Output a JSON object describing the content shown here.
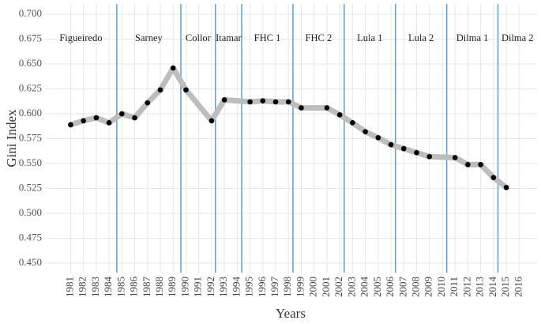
{
  "chart_data": {
    "type": "line",
    "x_label": "Years",
    "y_label": "Gini Index",
    "x": [
      1981,
      1982,
      1983,
      1984,
      1985,
      1986,
      1987,
      1988,
      1989,
      1990,
      1992,
      1993,
      1995,
      1996,
      1997,
      1998,
      1999,
      2001,
      2002,
      2003,
      2004,
      2005,
      2006,
      2007,
      2008,
      2009,
      2011,
      2012,
      2013,
      2014,
      2015
    ],
    "series": [
      {
        "name": "Gini Index",
        "color": "#bdbdbd",
        "marker_color": "#000000",
        "values": [
          0.589,
          0.593,
          0.596,
          0.591,
          0.6,
          0.596,
          0.611,
          0.624,
          0.646,
          0.624,
          0.593,
          0.614,
          0.612,
          0.613,
          0.612,
          0.612,
          0.606,
          0.606,
          0.599,
          0.591,
          0.582,
          0.576,
          0.569,
          0.565,
          0.561,
          0.557,
          0.556,
          0.549,
          0.549,
          0.536,
          0.526
        ]
      }
    ],
    "xlim": [
      1979,
      2017.4
    ],
    "xticks": [
      1981,
      1982,
      1983,
      1984,
      1985,
      1986,
      1987,
      1988,
      1989,
      1990,
      1991,
      1992,
      1993,
      1994,
      1995,
      1996,
      1997,
      1998,
      1999,
      2000,
      2001,
      2002,
      2003,
      2004,
      2005,
      2006,
      2007,
      2008,
      2009,
      2010,
      2011,
      2012,
      2013,
      2014,
      2015,
      2016
    ],
    "ylim": [
      0.4405,
      0.7103
    ],
    "yticks": [
      {
        "value": 0.45,
        "label": "0.450"
      },
      {
        "value": 0.475,
        "label": "0.475"
      },
      {
        "value": 0.5,
        "label": "0.500"
      },
      {
        "value": 0.525,
        "label": "0.525"
      },
      {
        "value": 0.55,
        "label": "0.550"
      },
      {
        "value": 0.575,
        "label": "0.575"
      },
      {
        "value": 0.6,
        "label": "0.600"
      },
      {
        "value": 0.625,
        "label": "0.625"
      },
      {
        "value": 0.65,
        "label": "0.650"
      },
      {
        "value": 0.675,
        "label": "0.675"
      },
      {
        "value": 0.7,
        "label": "0.700"
      }
    ],
    "grid": true,
    "eras": [
      {
        "name": "Figueiredo",
        "end": 1984.6
      },
      {
        "name": "Sarney",
        "end": 1989.6
      },
      {
        "name": "Collor",
        "end": 1992.3
      },
      {
        "name": "Itamar",
        "end": 1994.35
      },
      {
        "name": "FHC 1",
        "end": 1998.35
      },
      {
        "name": "FHC 2",
        "end": 2002.35
      },
      {
        "name": "Lula 1",
        "end": 2006.35
      },
      {
        "name": "Lula 2",
        "end": 2010.35
      },
      {
        "name": "Dilma 1",
        "end": 2014.35
      },
      {
        "name": "Dilma 2"
      }
    ],
    "era_line_color": "#6a9bc3"
  }
}
